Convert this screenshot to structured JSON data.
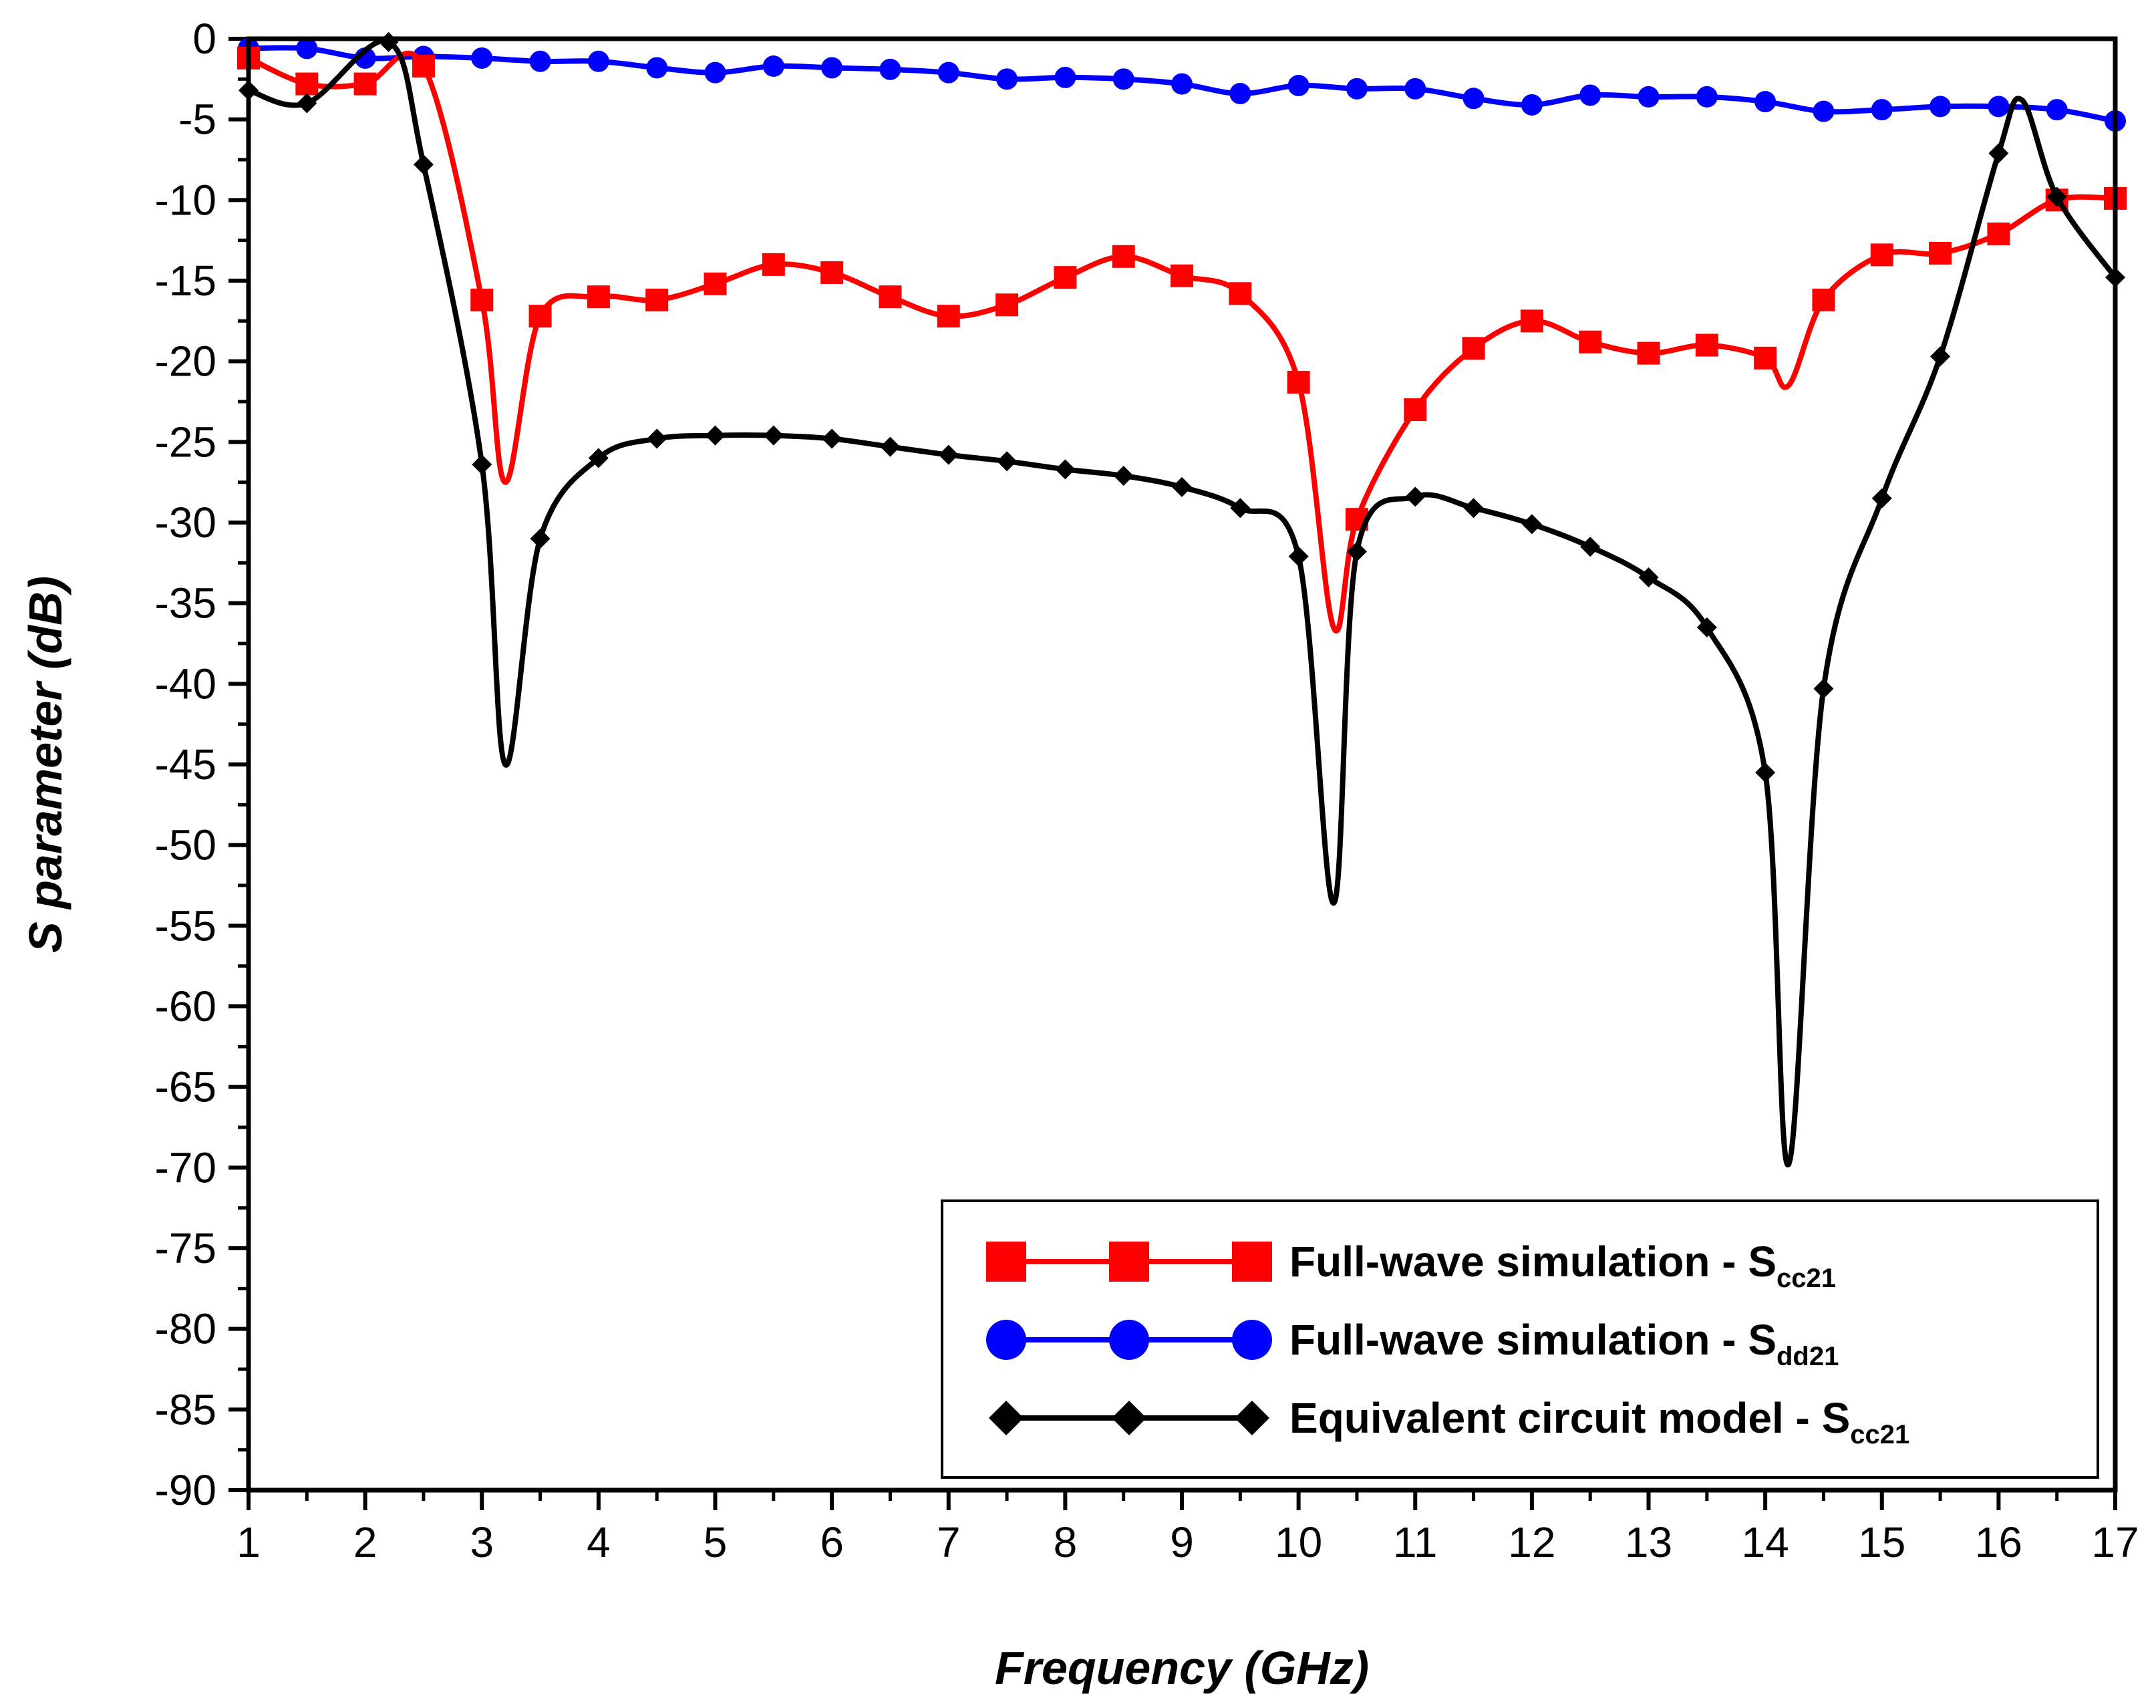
{
  "chart_data": {
    "type": "line",
    "title": "",
    "xlabel": "Frequency (GHz)",
    "ylabel": "S parameter (dB)",
    "xlim": [
      1,
      17
    ],
    "ylim": [
      -90,
      0
    ],
    "xticks": [
      1,
      2,
      3,
      4,
      5,
      6,
      7,
      8,
      9,
      10,
      11,
      12,
      13,
      14,
      15,
      16,
      17
    ],
    "yticks": [
      0,
      -5,
      -10,
      -15,
      -20,
      -25,
      -30,
      -35,
      -40,
      -45,
      -50,
      -55,
      -60,
      -65,
      -70,
      -75,
      -80,
      -85,
      -90
    ],
    "grid": false,
    "legend_position": "bottom-right",
    "series": [
      {
        "name": "Full-wave simulation - Scc21",
        "legend_main": "Full-wave simulation - S",
        "legend_sub": "cc21",
        "color": "#ff0000",
        "marker": "square",
        "x": [
          1,
          1.5,
          2,
          2.5,
          3.0,
          3.2,
          3.5,
          4,
          4.5,
          5,
          5.5,
          6,
          6.5,
          7,
          7.5,
          8,
          8.5,
          9,
          9.5,
          10,
          10.3,
          10.5,
          11,
          11.5,
          12,
          12.5,
          13,
          13.5,
          14,
          14.2,
          14.5,
          15,
          15.5,
          16,
          16.5,
          17
        ],
        "y": [
          -1.2,
          -2.8,
          -2.8,
          -1.7,
          -16.2,
          -27.5,
          -17.2,
          -16.0,
          -16.2,
          -15.2,
          -14.0,
          -14.5,
          -16.0,
          -17.2,
          -16.5,
          -14.8,
          -13.5,
          -14.7,
          -15.8,
          -21.3,
          -36.5,
          -29.8,
          -23.0,
          -19.2,
          -17.5,
          -18.8,
          -19.5,
          -19.0,
          -19.8,
          -21.5,
          -16.2,
          -13.4,
          -13.3,
          -12.1,
          -10.0,
          -9.9
        ],
        "marker_x": [
          1,
          1.5,
          2,
          2.5,
          3,
          3.5,
          4,
          4.5,
          5,
          5.5,
          6,
          6.5,
          7,
          7.5,
          8,
          8.5,
          9,
          9.5,
          10,
          10.5,
          11,
          11.5,
          12,
          12.5,
          13,
          13.5,
          14,
          14.5,
          15,
          15.5,
          16,
          16.5,
          17
        ],
        "marker_y": [
          -1.2,
          -2.8,
          -2.8,
          -1.7,
          -16.2,
          -17.2,
          -16.0,
          -16.2,
          -15.2,
          -14.0,
          -14.5,
          -16.0,
          -17.2,
          -16.5,
          -14.8,
          -13.5,
          -14.7,
          -15.8,
          -21.3,
          -29.8,
          -23.0,
          -19.2,
          -17.5,
          -18.8,
          -19.5,
          -19.0,
          -19.8,
          -16.2,
          -13.4,
          -13.3,
          -12.1,
          -10.0,
          -9.9
        ]
      },
      {
        "name": "Full-wave simulation - Sdd21",
        "legend_main": "Full-wave simulation - S",
        "legend_sub": "dd21",
        "color": "#0000ff",
        "marker": "circle",
        "x": [
          1,
          1.5,
          2,
          2.5,
          3,
          3.5,
          4,
          4.5,
          5,
          5.5,
          6,
          6.5,
          7,
          7.5,
          8,
          8.5,
          9,
          9.5,
          10,
          10.5,
          11,
          11.5,
          12,
          12.5,
          13,
          13.5,
          14,
          14.5,
          15,
          15.5,
          16,
          16.5,
          17
        ],
        "y": [
          -0.6,
          -0.6,
          -1.2,
          -1.1,
          -1.2,
          -1.4,
          -1.4,
          -1.8,
          -2.1,
          -1.7,
          -1.8,
          -1.9,
          -2.1,
          -2.5,
          -2.4,
          -2.5,
          -2.8,
          -3.4,
          -2.9,
          -3.1,
          -3.1,
          -3.7,
          -4.1,
          -3.5,
          -3.6,
          -3.6,
          -3.9,
          -4.5,
          -4.4,
          -4.2,
          -4.2,
          -4.4,
          -5.1
        ],
        "marker_x": [
          1,
          1.5,
          2,
          2.5,
          3,
          3.5,
          4,
          4.5,
          5,
          5.5,
          6,
          6.5,
          7,
          7.5,
          8,
          8.5,
          9,
          9.5,
          10,
          10.5,
          11,
          11.5,
          12,
          12.5,
          13,
          13.5,
          14,
          14.5,
          15,
          15.5,
          16,
          16.5,
          17
        ],
        "marker_y": [
          -0.6,
          -0.6,
          -1.2,
          -1.1,
          -1.2,
          -1.4,
          -1.4,
          -1.8,
          -2.1,
          -1.7,
          -1.8,
          -1.9,
          -2.1,
          -2.5,
          -2.4,
          -2.5,
          -2.8,
          -3.4,
          -2.9,
          -3.1,
          -3.1,
          -3.7,
          -4.1,
          -3.5,
          -3.6,
          -3.6,
          -3.9,
          -4.5,
          -4.4,
          -4.2,
          -4.2,
          -4.4,
          -5.1
        ]
      },
      {
        "name": "Equivalent circuit model - Scc21",
        "legend_main": "Equivalent circuit model - S",
        "legend_sub": "cc21",
        "color": "#000000",
        "marker": "diamond",
        "x": [
          1,
          1.5,
          2.2,
          2.5,
          3.0,
          3.2,
          3.5,
          4,
          4.5,
          5,
          5.5,
          6,
          6.5,
          7,
          7.5,
          8,
          8.5,
          9,
          9.5,
          10,
          10.3,
          10.5,
          11,
          11.5,
          12,
          12.5,
          13,
          13.5,
          14,
          14.2,
          14.5,
          15,
          15.5,
          16,
          16.2,
          16.5,
          17
        ],
        "y": [
          -3.2,
          -4.0,
          -0.2,
          -7.8,
          -26.4,
          -45.0,
          -31.0,
          -26.0,
          -24.8,
          -24.6,
          -24.6,
          -24.8,
          -25.3,
          -25.8,
          -26.2,
          -26.7,
          -27.1,
          -27.8,
          -29.1,
          -32.1,
          -53.6,
          -31.8,
          -28.4,
          -29.1,
          -30.1,
          -31.5,
          -33.4,
          -36.5,
          -45.5,
          -69.8,
          -40.3,
          -28.5,
          -19.7,
          -7.1,
          -3.8,
          -9.8,
          -14.8
        ],
        "marker_x": [
          1,
          1.5,
          2.2,
          2.5,
          3,
          3.5,
          4,
          4.5,
          5,
          5.5,
          6,
          6.5,
          7,
          7.5,
          8,
          8.5,
          9,
          9.5,
          10,
          10.5,
          11,
          11.5,
          12,
          12.5,
          13,
          13.5,
          14,
          14.5,
          15,
          15.5,
          16,
          16.5,
          17
        ],
        "marker_y": [
          -3.2,
          -4.0,
          -0.2,
          -7.8,
          -26.4,
          -31.0,
          -26.0,
          -24.8,
          -24.6,
          -24.6,
          -24.8,
          -25.3,
          -25.8,
          -26.2,
          -26.7,
          -27.1,
          -27.8,
          -29.1,
          -32.1,
          -31.8,
          -28.4,
          -29.1,
          -30.1,
          -31.5,
          -33.4,
          -36.5,
          -45.5,
          -40.3,
          -28.5,
          -19.7,
          -7.1,
          -9.8,
          -14.8
        ]
      }
    ]
  }
}
